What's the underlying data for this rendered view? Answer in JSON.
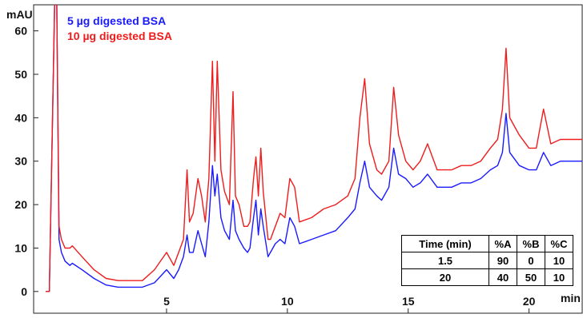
{
  "chart_data": {
    "type": "line",
    "title": "",
    "xlabel": "min",
    "ylabel": "mAU",
    "xlim": [
      -0.5,
      22.2
    ],
    "ylim": [
      -5,
      66
    ],
    "x_ticks": [
      5,
      10,
      15,
      20
    ],
    "y_ticks": [
      0,
      10,
      20,
      30,
      40,
      50,
      60
    ],
    "legend_position": "top-left",
    "series": [
      {
        "name": "5 µg digested BSA",
        "color": "#1a1aff",
        "points": [
          [
            0,
            0
          ],
          [
            0.15,
            0
          ],
          [
            0.3,
            45
          ],
          [
            0.38,
            70
          ],
          [
            0.45,
            70
          ],
          [
            0.55,
            12
          ],
          [
            0.65,
            9
          ],
          [
            0.8,
            7
          ],
          [
            1.0,
            6
          ],
          [
            1.1,
            6.5
          ],
          [
            1.5,
            5
          ],
          [
            2,
            3
          ],
          [
            2.5,
            1.5
          ],
          [
            3,
            1
          ],
          [
            4,
            1
          ],
          [
            4.5,
            2
          ],
          [
            5,
            5
          ],
          [
            5.3,
            3
          ],
          [
            5.5,
            5
          ],
          [
            5.7,
            8
          ],
          [
            5.85,
            13
          ],
          [
            5.95,
            9
          ],
          [
            6.1,
            9
          ],
          [
            6.3,
            14
          ],
          [
            6.45,
            11
          ],
          [
            6.6,
            8
          ],
          [
            6.75,
            16
          ],
          [
            6.9,
            29
          ],
          [
            7.0,
            22
          ],
          [
            7.1,
            27
          ],
          [
            7.25,
            17
          ],
          [
            7.4,
            14
          ],
          [
            7.6,
            12
          ],
          [
            7.75,
            21
          ],
          [
            7.85,
            14
          ],
          [
            8,
            12
          ],
          [
            8.2,
            10
          ],
          [
            8.35,
            9
          ],
          [
            8.45,
            10
          ],
          [
            8.6,
            17
          ],
          [
            8.7,
            21
          ],
          [
            8.8,
            13
          ],
          [
            8.9,
            19
          ],
          [
            9.0,
            15
          ],
          [
            9.2,
            8
          ],
          [
            9.3,
            9
          ],
          [
            9.5,
            11
          ],
          [
            9.7,
            12
          ],
          [
            9.9,
            11
          ],
          [
            10.1,
            17
          ],
          [
            10.3,
            15
          ],
          [
            10.5,
            11
          ],
          [
            11,
            12
          ],
          [
            11.5,
            13
          ],
          [
            12,
            14
          ],
          [
            12.5,
            17
          ],
          [
            12.8,
            19
          ],
          [
            13.0,
            25
          ],
          [
            13.2,
            30
          ],
          [
            13.4,
            24
          ],
          [
            13.7,
            22
          ],
          [
            13.9,
            21
          ],
          [
            14.2,
            24
          ],
          [
            14.4,
            33
          ],
          [
            14.6,
            27
          ],
          [
            14.9,
            26
          ],
          [
            15.2,
            24
          ],
          [
            15.5,
            25
          ],
          [
            15.8,
            27
          ],
          [
            16.2,
            24
          ],
          [
            16.8,
            24
          ],
          [
            17.2,
            25
          ],
          [
            17.6,
            25
          ],
          [
            18,
            26
          ],
          [
            18.4,
            28
          ],
          [
            18.7,
            29
          ],
          [
            18.9,
            32
          ],
          [
            19.05,
            41
          ],
          [
            19.2,
            32
          ],
          [
            19.6,
            29
          ],
          [
            20,
            28
          ],
          [
            20.3,
            28
          ],
          [
            20.6,
            32
          ],
          [
            20.9,
            29
          ],
          [
            21.3,
            30
          ],
          [
            21.8,
            30
          ],
          [
            22.2,
            30
          ]
        ]
      },
      {
        "name": "10 µg digested BSA",
        "color": "#ee1c1c",
        "points": [
          [
            0,
            0
          ],
          [
            0.15,
            0
          ],
          [
            0.3,
            45
          ],
          [
            0.38,
            70
          ],
          [
            0.45,
            70
          ],
          [
            0.55,
            15
          ],
          [
            0.65,
            12
          ],
          [
            0.8,
            10
          ],
          [
            1.0,
            10
          ],
          [
            1.1,
            10.5
          ],
          [
            1.5,
            8
          ],
          [
            2,
            5
          ],
          [
            2.5,
            3
          ],
          [
            3,
            2.5
          ],
          [
            4,
            2.5
          ],
          [
            4.5,
            5
          ],
          [
            5,
            9
          ],
          [
            5.3,
            6
          ],
          [
            5.5,
            9
          ],
          [
            5.7,
            12
          ],
          [
            5.85,
            28
          ],
          [
            5.95,
            16
          ],
          [
            6.1,
            18
          ],
          [
            6.3,
            26
          ],
          [
            6.45,
            22
          ],
          [
            6.6,
            16
          ],
          [
            6.75,
            26
          ],
          [
            6.9,
            53
          ],
          [
            7.0,
            30
          ],
          [
            7.1,
            53
          ],
          [
            7.25,
            28
          ],
          [
            7.4,
            23
          ],
          [
            7.6,
            20
          ],
          [
            7.75,
            46
          ],
          [
            7.85,
            22
          ],
          [
            8,
            20
          ],
          [
            8.2,
            15
          ],
          [
            8.35,
            15
          ],
          [
            8.45,
            16
          ],
          [
            8.6,
            26
          ],
          [
            8.7,
            31
          ],
          [
            8.8,
            22
          ],
          [
            8.9,
            33
          ],
          [
            9.0,
            23
          ],
          [
            9.2,
            12
          ],
          [
            9.3,
            12
          ],
          [
            9.5,
            15
          ],
          [
            9.7,
            18
          ],
          [
            9.9,
            17
          ],
          [
            10.1,
            26
          ],
          [
            10.3,
            24
          ],
          [
            10.5,
            16
          ],
          [
            11,
            17
          ],
          [
            11.5,
            19
          ],
          [
            12,
            20
          ],
          [
            12.5,
            22
          ],
          [
            12.8,
            26
          ],
          [
            13.0,
            40
          ],
          [
            13.2,
            49
          ],
          [
            13.4,
            34
          ],
          [
            13.7,
            28
          ],
          [
            13.9,
            27
          ],
          [
            14.2,
            30
          ],
          [
            14.4,
            47
          ],
          [
            14.6,
            36
          ],
          [
            14.9,
            30
          ],
          [
            15.2,
            28
          ],
          [
            15.5,
            30
          ],
          [
            15.8,
            34
          ],
          [
            16.2,
            28
          ],
          [
            16.8,
            28
          ],
          [
            17.2,
            29
          ],
          [
            17.6,
            29
          ],
          [
            18,
            30
          ],
          [
            18.4,
            33
          ],
          [
            18.7,
            35
          ],
          [
            18.9,
            42
          ],
          [
            19.05,
            56
          ],
          [
            19.2,
            40
          ],
          [
            19.6,
            36
          ],
          [
            20,
            33
          ],
          [
            20.3,
            33
          ],
          [
            20.6,
            42
          ],
          [
            20.9,
            34
          ],
          [
            21.3,
            35
          ],
          [
            21.8,
            35
          ],
          [
            22.2,
            35
          ]
        ]
      }
    ],
    "gradient_table": {
      "headers": [
        "Time (min)",
        "%A",
        "%B",
        "%C"
      ],
      "rows": [
        [
          "1.5",
          "90",
          "0",
          "10"
        ],
        [
          "20",
          "40",
          "50",
          "10"
        ]
      ]
    }
  }
}
